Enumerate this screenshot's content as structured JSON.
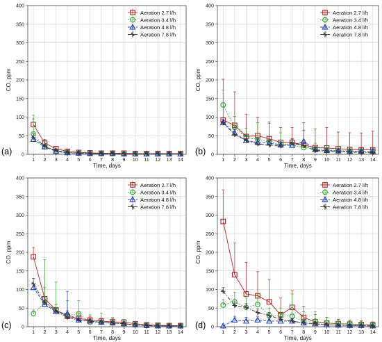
{
  "chart_data": [
    {
      "type": "line",
      "panel_label": "(a)",
      "xlabel": "Time, days",
      "ylabel": "CO, ppm",
      "xlim": [
        0.5,
        14.5
      ],
      "ylim": [
        0,
        400
      ],
      "x": [
        1,
        2,
        3,
        4,
        5,
        6,
        7,
        8,
        9,
        10,
        11,
        12,
        13,
        14
      ],
      "x_tick_labels": [
        "1",
        "2",
        "3",
        "4",
        "5",
        "6",
        "7",
        "8",
        "9",
        "10",
        "11",
        "12",
        "13",
        "14"
      ],
      "y_ticks": [
        0,
        50,
        100,
        150,
        200,
        250,
        300,
        350,
        400
      ],
      "grid": true,
      "legend": "top-right",
      "series": [
        {
          "name": "Aeration 2.7 l/h",
          "marker": "square",
          "color": "#b22222",
          "dash": "solid",
          "values": [
            80,
            30,
            15,
            8,
            5,
            4,
            3,
            3,
            3,
            2,
            2,
            2,
            2,
            2
          ],
          "error": [
            15,
            10,
            6,
            4,
            3,
            2,
            2,
            2,
            2,
            1,
            1,
            1,
            1,
            1
          ]
        },
        {
          "name": "Aeration 3.4 l/h",
          "marker": "circle",
          "color": "#2ca02c",
          "dash": "dotted",
          "values": [
            55,
            20,
            8,
            5,
            3,
            2,
            2,
            2,
            1,
            1,
            1,
            1,
            1,
            1
          ],
          "error": [
            50,
            15,
            6,
            4,
            3,
            2,
            2,
            2,
            1,
            1,
            1,
            1,
            1,
            1
          ]
        },
        {
          "name": "Aeration 4.8 l/h",
          "marker": "triangle",
          "color": "#1f3fbf",
          "dash": "dashed",
          "values": [
            40,
            20,
            8,
            4,
            3,
            2,
            2,
            2,
            1,
            1,
            1,
            1,
            1,
            1
          ],
          "error": [
            10,
            6,
            4,
            3,
            2,
            1,
            1,
            1,
            1,
            1,
            1,
            1,
            1,
            1
          ]
        },
        {
          "name": "Aeration 7.8 l/h",
          "marker": "diamond",
          "color": "#333333",
          "dash": "dashdot",
          "values": [
            45,
            22,
            10,
            5,
            3,
            2,
            2,
            2,
            1,
            1,
            1,
            1,
            1,
            1
          ],
          "error": [
            10,
            6,
            4,
            3,
            2,
            1,
            1,
            1,
            1,
            1,
            1,
            1,
            1,
            1
          ]
        }
      ]
    },
    {
      "type": "line",
      "panel_label": "(b)",
      "xlabel": "Time, days",
      "ylabel": "CO, ppm",
      "xlim": [
        0.5,
        14.5
      ],
      "ylim": [
        0,
        400
      ],
      "x": [
        1,
        2,
        3,
        4,
        5,
        6,
        7,
        8,
        9,
        10,
        11,
        12,
        13,
        14
      ],
      "x_tick_labels": [
        "1",
        "2",
        "3",
        "4",
        "5",
        "6",
        "7",
        "8",
        "9",
        "10",
        "11",
        "12",
        "13",
        "14"
      ],
      "y_ticks": [
        0,
        50,
        100,
        150,
        200,
        250,
        300,
        350,
        400
      ],
      "grid": true,
      "legend": "top-right",
      "series": [
        {
          "name": "Aeration 2.7 l/h",
          "marker": "square",
          "color": "#b22222",
          "dash": "solid",
          "values": [
            92,
            78,
            48,
            50,
            42,
            32,
            32,
            25,
            18,
            17,
            15,
            13,
            12,
            12
          ],
          "error": [
            110,
            90,
            60,
            50,
            45,
            40,
            40,
            40,
            50,
            55,
            45,
            45,
            45,
            50
          ]
        },
        {
          "name": "Aeration 3.4 l/h",
          "marker": "circle",
          "color": "#2ca02c",
          "dash": "dotted",
          "values": [
            133,
            72,
            45,
            40,
            33,
            28,
            25,
            18,
            15,
            12,
            10,
            9,
            8,
            8
          ],
          "error": [
            40,
            30,
            25,
            45,
            50,
            30,
            15,
            12,
            15,
            12,
            10,
            9,
            8,
            8
          ]
        },
        {
          "name": "Aeration 4.8 l/h",
          "marker": "triangle",
          "color": "#1f3fbf",
          "dash": "dashed",
          "values": [
            85,
            57,
            37,
            32,
            30,
            25,
            24,
            35,
            12,
            10,
            9,
            8,
            8,
            8
          ],
          "error": [
            10,
            12,
            15,
            10,
            10,
            8,
            8,
            50,
            8,
            6,
            5,
            5,
            5,
            5
          ]
        },
        {
          "name": "Aeration 7.8 l/h",
          "marker": "diamond",
          "color": "#333333",
          "dash": "dashdot",
          "values": [
            84,
            53,
            37,
            28,
            25,
            22,
            30,
            23,
            10,
            8,
            7,
            6,
            5,
            4
          ],
          "error": [
            8,
            10,
            12,
            12,
            10,
            8,
            12,
            15,
            8,
            6,
            5,
            5,
            5,
            4
          ]
        }
      ]
    },
    {
      "type": "line",
      "panel_label": "(c)",
      "xlabel": "Time, days",
      "ylabel": "CO, ppm",
      "xlim": [
        0.5,
        14.5
      ],
      "ylim": [
        0,
        400
      ],
      "x": [
        1,
        2,
        3,
        4,
        5,
        6,
        7,
        8,
        9,
        10,
        11,
        12,
        13,
        14
      ],
      "x_tick_labels": [
        "1",
        "2",
        "3",
        "4",
        "5",
        "6",
        "7",
        "8",
        "9",
        "10",
        "11",
        "12",
        "13",
        "14"
      ],
      "y_ticks": [
        0,
        50,
        100,
        150,
        200,
        250,
        300,
        350,
        400
      ],
      "grid": true,
      "legend": "top-right",
      "series": [
        {
          "name": "Aeration 2.7 l/h",
          "marker": "square",
          "color": "#b22222",
          "dash": "solid",
          "values": [
            188,
            75,
            45,
            28,
            22,
            18,
            15,
            13,
            12,
            8,
            5,
            4,
            3,
            3
          ],
          "error": [
            25,
            30,
            15,
            15,
            15,
            10,
            8,
            8,
            6,
            5,
            4,
            3,
            2,
            2
          ]
        },
        {
          "name": "Aeration 3.4 l/h",
          "marker": "circle",
          "color": "#2ca02c",
          "dash": "dotted",
          "values": [
            35,
            65,
            45,
            30,
            35,
            12,
            12,
            10,
            8,
            5,
            3,
            3,
            2,
            2
          ],
          "error": [
            10,
            115,
            75,
            40,
            35,
            20,
            25,
            15,
            12,
            8,
            5,
            4,
            3,
            3
          ]
        },
        {
          "name": "Aeration 4.8 l/h",
          "marker": "triangle",
          "color": "#1f3fbf",
          "dash": "dashed",
          "values": [
            105,
            60,
            40,
            35,
            18,
            15,
            12,
            10,
            8,
            5,
            3,
            2,
            2,
            2
          ],
          "error": [
            10,
            12,
            10,
            60,
            10,
            6,
            5,
            5,
            4,
            3,
            2,
            2,
            2,
            2
          ]
        },
        {
          "name": "Aeration 7.8 l/h",
          "marker": "diamond",
          "color": "#333333",
          "dash": "dashdot",
          "values": [
            115,
            65,
            42,
            25,
            18,
            15,
            12,
            10,
            8,
            5,
            3,
            2,
            2,
            2
          ],
          "error": [
            15,
            12,
            8,
            8,
            6,
            5,
            5,
            4,
            4,
            3,
            2,
            2,
            2,
            2
          ]
        }
      ]
    },
    {
      "type": "line",
      "panel_label": "(d)",
      "xlabel": "Time, days",
      "ylabel": "CO, ppm",
      "xlim": [
        0.5,
        14.5
      ],
      "ylim": [
        0,
        400
      ],
      "x": [
        1,
        2,
        3,
        4,
        5,
        6,
        7,
        8,
        9,
        10,
        11,
        12,
        13,
        14
      ],
      "x_tick_labels": [
        "1",
        "2",
        "3",
        "4",
        "5",
        "6",
        "7",
        "8",
        "9",
        "10",
        "11",
        "12",
        "13",
        "14"
      ],
      "y_ticks": [
        0,
        50,
        100,
        150,
        200,
        250,
        300,
        350,
        400
      ],
      "grid": true,
      "legend": "top-right",
      "series": [
        {
          "name": "Aeration 2.7 l/h",
          "marker": "square",
          "color": "#b22222",
          "dash": "solid",
          "values": [
            283,
            140,
            88,
            83,
            67,
            32,
            52,
            25,
            13,
            10,
            8,
            7,
            6,
            5
          ],
          "error": [
            85,
            85,
            85,
            65,
            60,
            45,
            45,
            30,
            20,
            15,
            12,
            10,
            10,
            8
          ]
        },
        {
          "name": "Aeration 3.4 l/h",
          "marker": "circle",
          "color": "#2ca02c",
          "dash": "dotted",
          "values": [
            58,
            67,
            52,
            60,
            30,
            30,
            28,
            15,
            15,
            10,
            8,
            7,
            6,
            5
          ],
          "error": [
            15,
            25,
            25,
            25,
            20,
            20,
            60,
            25,
            25,
            15,
            10,
            8,
            8,
            6
          ]
        },
        {
          "name": "Aeration 4.8 l/h",
          "marker": "triangle",
          "color": "#1f3fbf",
          "dash": "dashed",
          "values": [
            2,
            18,
            15,
            18,
            15,
            15,
            15,
            10,
            8,
            5,
            4,
            3,
            3,
            2
          ],
          "error": [
            2,
            10,
            10,
            10,
            8,
            8,
            8,
            6,
            5,
            4,
            3,
            2,
            2,
            2
          ]
        },
        {
          "name": "Aeration 7.8 l/h",
          "marker": "diamond",
          "color": "#333333",
          "dash": "dashdot",
          "values": [
            95,
            57,
            52,
            38,
            30,
            20,
            15,
            10,
            8,
            5,
            4,
            3,
            3,
            2
          ],
          "error": [
            10,
            10,
            10,
            10,
            8,
            8,
            6,
            5,
            4,
            3,
            2,
            2,
            2,
            2
          ]
        }
      ]
    }
  ]
}
